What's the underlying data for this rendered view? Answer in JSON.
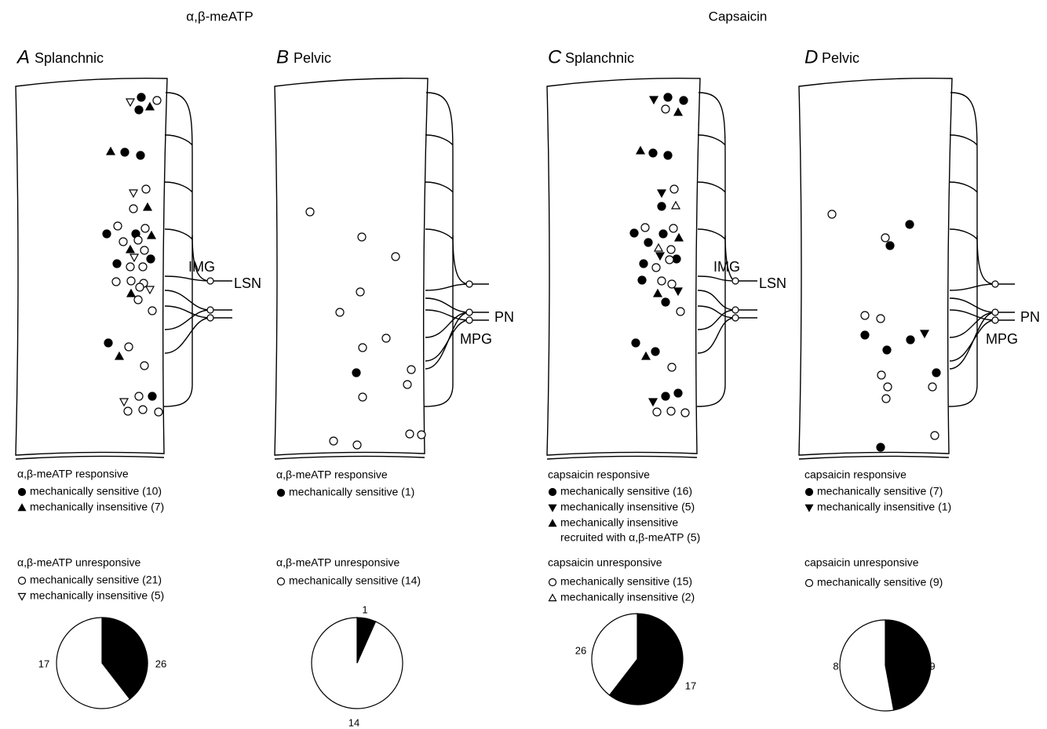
{
  "headers": [
    "α,β-meATP",
    "Capsaicin"
  ],
  "panels": [
    {
      "letter": "A",
      "name": "Splanchnic",
      "ganglion": [
        "IMG",
        "LSN"
      ],
      "legend": [
        {
          "title": "α,β-meATP responsive",
          "items": [
            [
              "mechanically sensitive (10)"
            ],
            [
              "mechanically insensitive (7)"
            ]
          ]
        },
        {
          "title": "α,β-meATP unresponsive",
          "items": [
            [
              "mechanically sensitive (21)"
            ],
            [
              "mechanically insensitive (5)"
            ]
          ]
        }
      ],
      "pie": [
        17,
        26
      ]
    },
    {
      "letter": "B",
      "name": "Pelvic",
      "ganglion": [
        "PN",
        "MPG"
      ],
      "legend": [
        {
          "title": "α,β-meATP responsive",
          "items": [
            [
              "mechanically sensitive (1)"
            ]
          ]
        },
        {
          "title": "α,β-meATP unresponsive",
          "items": [
            [
              "mechanically sensitive (14)"
            ]
          ]
        }
      ],
      "pie": [
        1,
        14
      ]
    },
    {
      "letter": "C",
      "name": "Splanchnic",
      "ganglion": [
        "IMG",
        "LSN"
      ],
      "legend": [
        {
          "title": "capsaicin responsive",
          "items": [
            [
              "mechanically sensitive (16)"
            ],
            [
              "mechanically insensitive (5)"
            ],
            [
              "mechanically insensitive",
              "recruited with α,β-meATP (5)"
            ]
          ]
        },
        {
          "title": "capsaicin unresponsive",
          "items": [
            [
              "mechanically sensitive (15)"
            ],
            [
              "mechanically insensitive (2)"
            ]
          ]
        }
      ],
      "pie": [
        26,
        17
      ]
    },
    {
      "letter": "D",
      "name": "Pelvic",
      "ganglion": [
        "PN",
        "MPG"
      ],
      "legend": [
        {
          "title": "capsaicin responsive",
          "items": [
            [
              "mechanically sensitive (7)"
            ],
            [
              "mechanically insensitive (1)"
            ]
          ]
        },
        {
          "title": "capsaicin unresponsive",
          "items": [
            [
              "mechanically sensitive (9)"
            ]
          ]
        }
      ],
      "pie": [
        8,
        9
      ]
    }
  ]
}
